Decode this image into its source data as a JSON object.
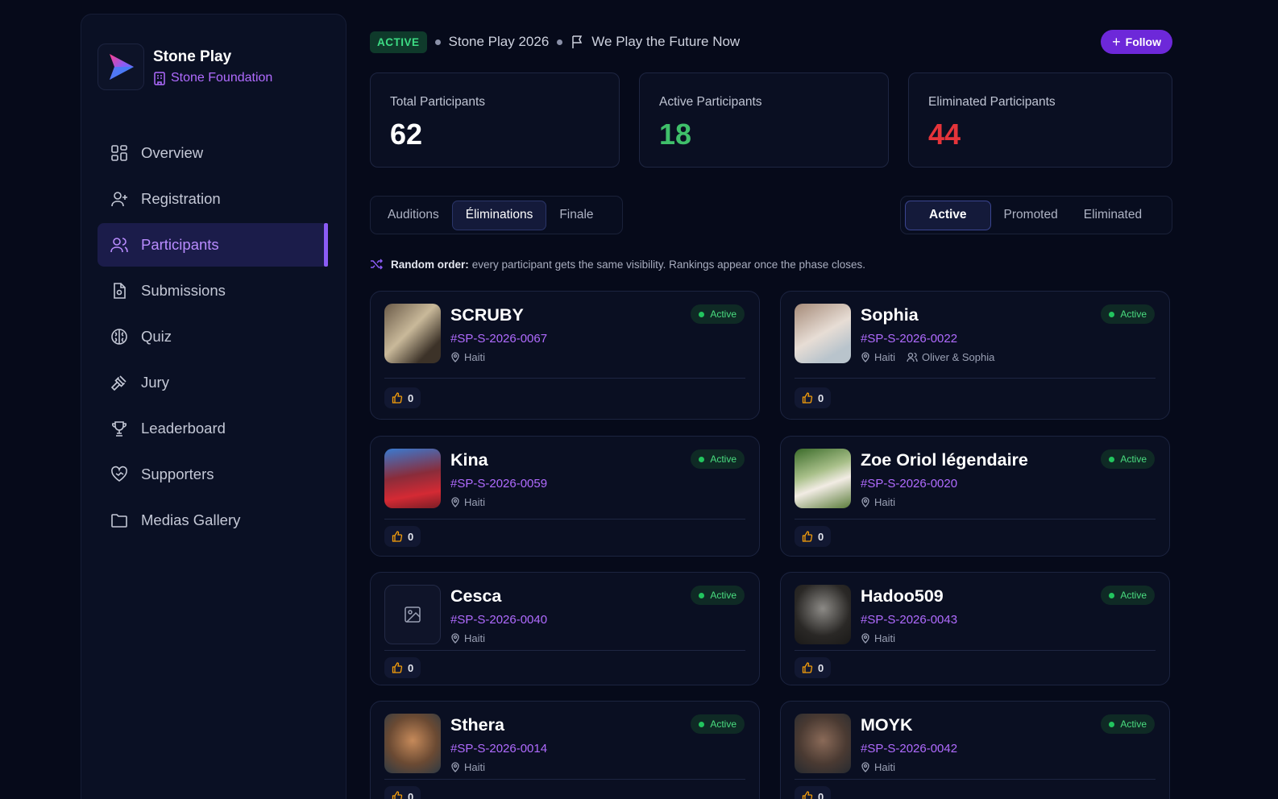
{
  "brand": {
    "title": "Stone Play",
    "subtitle": "Stone Foundation"
  },
  "nav": [
    {
      "label": "Overview",
      "icon": "grid-icon"
    },
    {
      "label": "Registration",
      "icon": "user-plus-icon"
    },
    {
      "label": "Participants",
      "icon": "users-icon",
      "active": true
    },
    {
      "label": "Submissions",
      "icon": "file-icon"
    },
    {
      "label": "Quiz",
      "icon": "brain-icon"
    },
    {
      "label": "Jury",
      "icon": "gavel-icon"
    },
    {
      "label": "Leaderboard",
      "icon": "trophy-icon"
    },
    {
      "label": "Supporters",
      "icon": "heart-handshake-icon"
    },
    {
      "label": "Medias Gallery",
      "icon": "folder-icon"
    }
  ],
  "header": {
    "status": "ACTIVE",
    "edition": "Stone Play 2026",
    "tagline": "We Play the Future Now",
    "follow_label": "Follow"
  },
  "stats": {
    "total": {
      "label": "Total Participants",
      "value": "62",
      "color": "#ffffff"
    },
    "active": {
      "label": "Active Participants",
      "value": "18",
      "color": "#3fbf6a"
    },
    "eliminated": {
      "label": "Eliminated Participants",
      "value": "44",
      "color": "#e5343a"
    }
  },
  "phase_tabs": [
    "Auditions",
    "Éliminations",
    "Finale"
  ],
  "status_tabs": [
    "Active",
    "Promoted",
    "Eliminated"
  ],
  "info": {
    "bold": "Random order:",
    "text": "every participant gets the same visibility. Rankings appear once the phase closes."
  },
  "participants": [
    {
      "name": "SCRUBY",
      "code": "#SP-S-2026-0067",
      "country": "Haiti",
      "team": "",
      "status": "Active",
      "votes": "0"
    },
    {
      "name": "Sophia",
      "code": "#SP-S-2026-0022",
      "country": "Haiti",
      "team": "Oliver & Sophia",
      "status": "Active",
      "votes": "0"
    },
    {
      "name": "Kina",
      "code": "#SP-S-2026-0059",
      "country": "Haiti",
      "team": "",
      "status": "Active",
      "votes": "0"
    },
    {
      "name": "Zoe Oriol légendaire",
      "code": "#SP-S-2026-0020",
      "country": "Haiti",
      "team": "",
      "status": "Active",
      "votes": "0"
    },
    {
      "name": "Cesca",
      "code": "#SP-S-2026-0040",
      "country": "Haiti",
      "team": "",
      "status": "Active",
      "votes": "0"
    },
    {
      "name": "Hadoo509",
      "code": "#SP-S-2026-0043",
      "country": "Haiti",
      "team": "",
      "status": "Active",
      "votes": "0"
    },
    {
      "name": "Sthera",
      "code": "#SP-S-2026-0014",
      "country": "Haiti",
      "team": "",
      "status": "Active",
      "votes": "0"
    },
    {
      "name": "MOYK",
      "code": "#SP-S-2026-0042",
      "country": "Haiti",
      "team": "",
      "status": "Active",
      "votes": "0"
    }
  ]
}
